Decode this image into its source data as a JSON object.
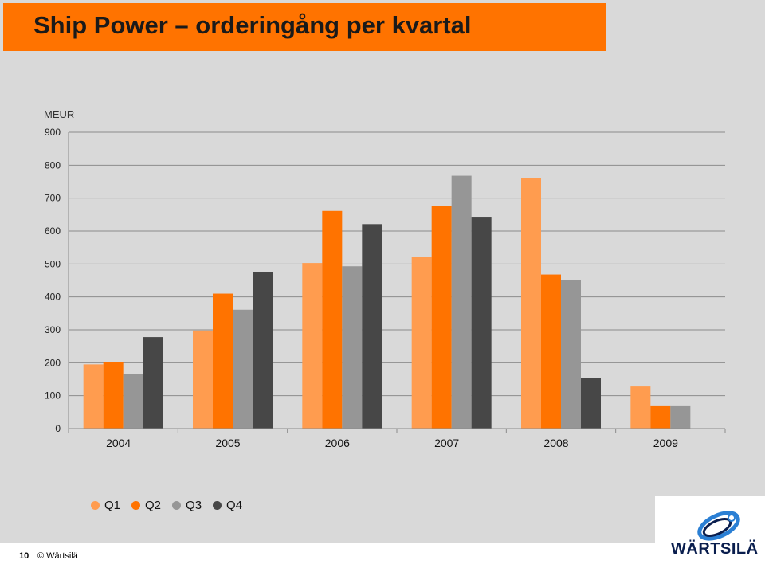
{
  "slide": {
    "title": "Ship Power – orderingång per kvartal",
    "page_number": "10",
    "copyright": "© Wärtsilä",
    "logo_text": "WÄRTSILÄ"
  },
  "chart_data": {
    "type": "bar",
    "ylabel": "MEUR",
    "ylim": [
      0,
      900
    ],
    "yticks": [
      0,
      100,
      200,
      300,
      400,
      500,
      600,
      700,
      800,
      900
    ],
    "grid": true,
    "legend_position": "bottom",
    "categories": [
      "2004",
      "2005",
      "2006",
      "2007",
      "2008",
      "2009"
    ],
    "series": [
      {
        "name": "Q1",
        "color": "#ff9c4f",
        "values": [
          195,
          298,
          503,
          522,
          760,
          128
        ]
      },
      {
        "name": "Q2",
        "color": "#ff7300",
        "values": [
          201,
          410,
          661,
          675,
          468,
          68
        ]
      },
      {
        "name": "Q3",
        "color": "#969696",
        "values": [
          166,
          361,
          493,
          768,
          450,
          68
        ]
      },
      {
        "name": "Q4",
        "color": "#474747",
        "values": [
          278,
          476,
          621,
          641,
          153,
          null
        ]
      }
    ]
  }
}
